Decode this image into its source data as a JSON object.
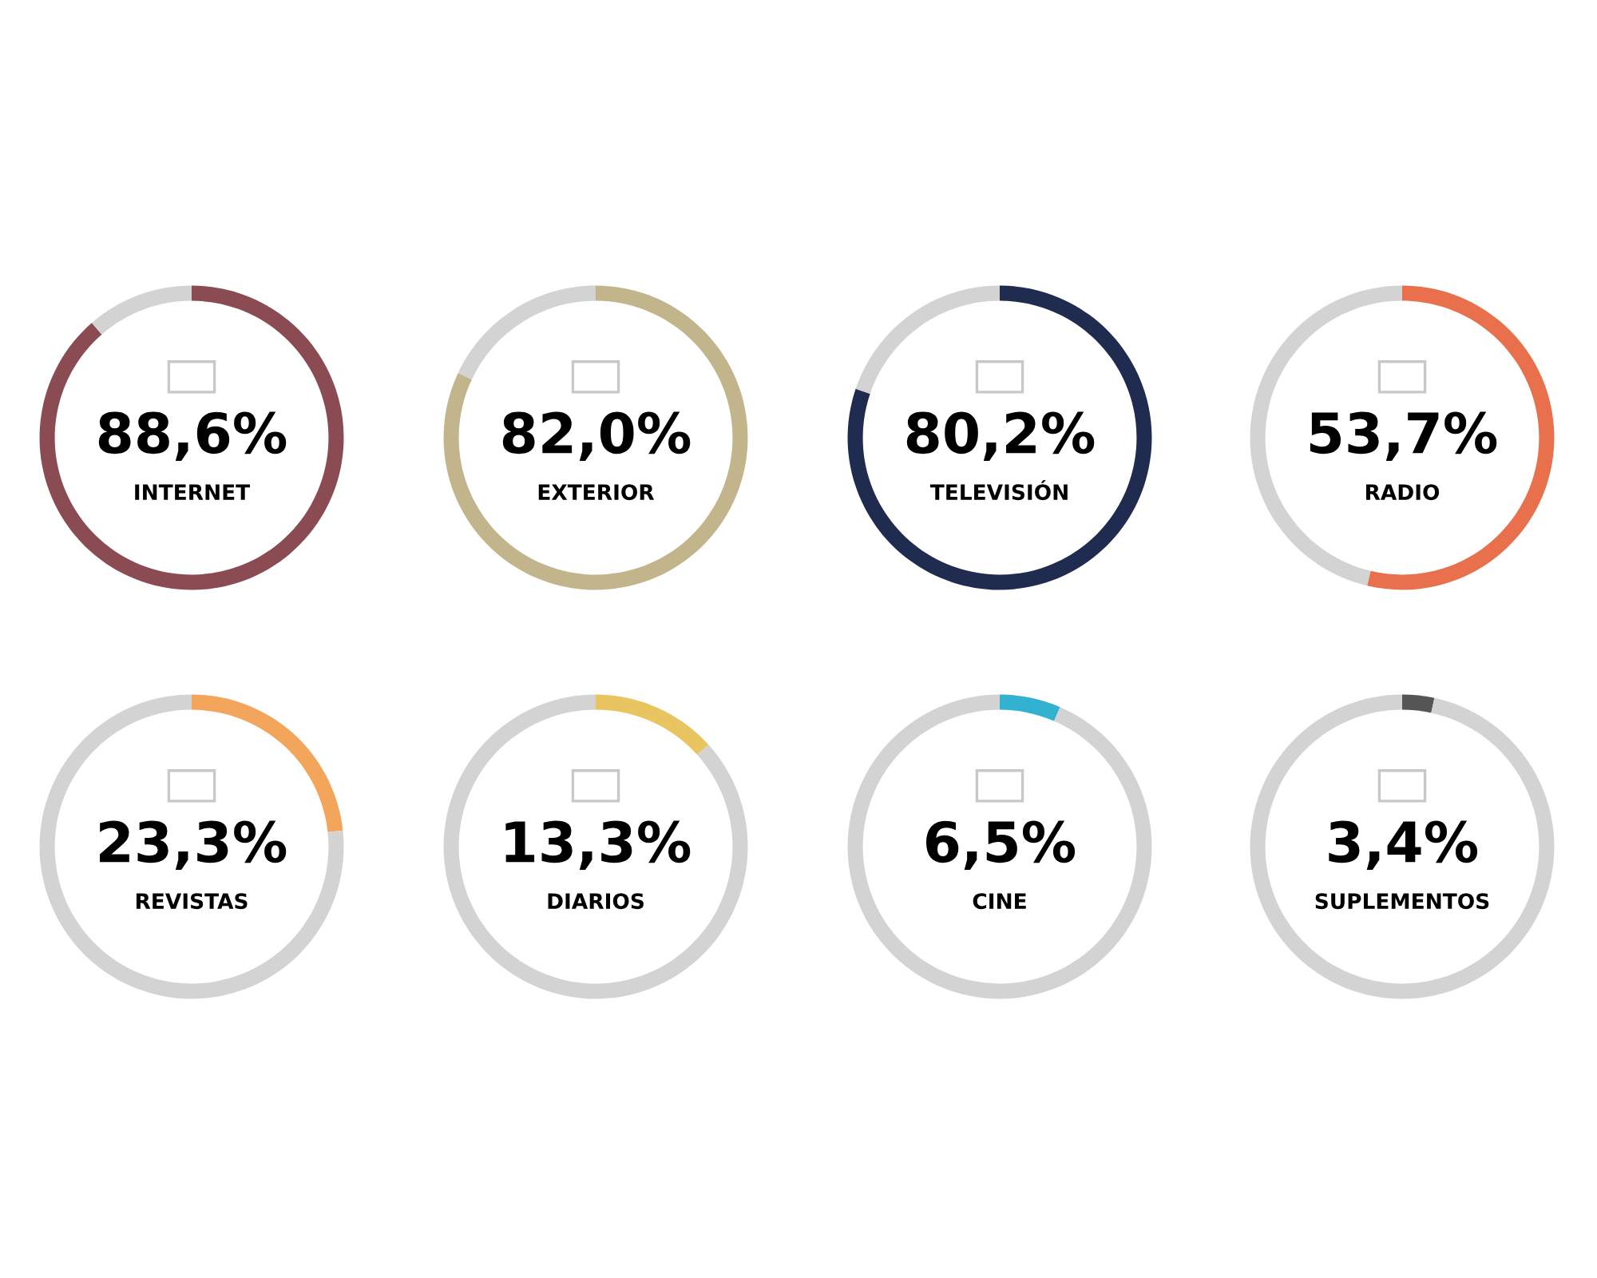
{
  "chart_data": [
    {
      "type": "donut",
      "title": "INTERNET",
      "categories": [
        null,
        null
      ],
      "values": [
        88.6,
        11.4
      ],
      "colors": [
        "#8b4b52",
        "#d3d3d3"
      ],
      "annotations": [
        "88,6%"
      ]
    },
    {
      "type": "donut",
      "title": "EXTERIOR",
      "categories": [
        null,
        null
      ],
      "values": [
        82.0,
        18.0
      ],
      "colors": [
        "#c2b58c",
        "#d3d3d3"
      ],
      "annotations": [
        "82,0%"
      ]
    },
    {
      "type": "donut",
      "title": "TELEVISIÓN",
      "categories": [
        null,
        null
      ],
      "values": [
        80.2,
        19.8
      ],
      "colors": [
        "#1f2b4f",
        "#d3d3d3"
      ],
      "annotations": [
        "80,2%"
      ]
    },
    {
      "type": "donut",
      "title": "RADIO",
      "categories": [
        null,
        null
      ],
      "values": [
        53.7,
        46.3
      ],
      "colors": [
        "#e8704d",
        "#d3d3d3"
      ],
      "annotations": [
        "53,7%"
      ]
    },
    {
      "type": "donut",
      "title": "REVISTAS",
      "categories": [
        null,
        null
      ],
      "values": [
        23.3,
        76.7
      ],
      "colors": [
        "#f2a55b",
        "#d3d3d3"
      ],
      "annotations": [
        "23,3%"
      ]
    },
    {
      "type": "donut",
      "title": "DIARIOS",
      "categories": [
        null,
        null
      ],
      "values": [
        13.3,
        86.7
      ],
      "colors": [
        "#e9c562",
        "#d3d3d3"
      ],
      "annotations": [
        "13,3%"
      ]
    },
    {
      "type": "donut",
      "title": "CINE",
      "categories": [
        null,
        null
      ],
      "values": [
        6.5,
        93.5
      ],
      "colors": [
        "#33b1d0",
        "#d3d3d3"
      ],
      "annotations": [
        "6,5%"
      ]
    },
    {
      "type": "donut",
      "title": "SUPLEMENTOS",
      "categories": [
        null,
        null
      ],
      "values": [
        3.4,
        96.6
      ],
      "colors": [
        "#555555",
        "#d3d3d3"
      ],
      "annotations": [
        "3,4%"
      ]
    }
  ]
}
